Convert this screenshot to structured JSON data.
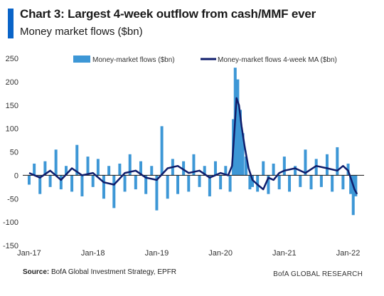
{
  "header": {
    "title": "Chart 3: Largest 4-week outflow from cash/MMF ever",
    "subtitle": "Money market flows ($bn)"
  },
  "footer": {
    "source_label": "Source:",
    "source_text": "BofA Global Investment Strategy, EPFR",
    "brand": "BofA GLOBAL RESEARCH"
  },
  "colors": {
    "bars": "#3d97d6",
    "ma_line": "#0f1d6b",
    "accent": "#0a64c8"
  },
  "chart_data": {
    "type": "bar",
    "ylim": [
      -150,
      250
    ],
    "yticks": [
      250,
      200,
      150,
      100,
      50,
      0,
      -50,
      -100,
      -150
    ],
    "xlim": [
      2016.9,
      2022.25
    ],
    "xticks": [
      {
        "label": "Jan-17",
        "t": 2017
      },
      {
        "label": "Jan-18",
        "t": 2018
      },
      {
        "label": "Jan-19",
        "t": 2019
      },
      {
        "label": "Jan-20",
        "t": 2020
      },
      {
        "label": "Jan-21",
        "t": 2021
      },
      {
        "label": "Jan-22",
        "t": 2022
      }
    ],
    "legend": {
      "placement": "top"
    },
    "series": [
      {
        "name": "Money-market flows ($bn)",
        "kind": "bar",
        "x": [
          2017.0,
          2017.08,
          2017.17,
          2017.25,
          2017.33,
          2017.42,
          2017.5,
          2017.58,
          2017.67,
          2017.75,
          2017.83,
          2017.92,
          2018.0,
          2018.08,
          2018.17,
          2018.25,
          2018.33,
          2018.42,
          2018.5,
          2018.58,
          2018.67,
          2018.75,
          2018.83,
          2018.92,
          2019.0,
          2019.08,
          2019.17,
          2019.25,
          2019.33,
          2019.42,
          2019.5,
          2019.58,
          2019.67,
          2019.75,
          2019.83,
          2019.92,
          2020.0,
          2020.08,
          2020.15,
          2020.2,
          2020.23,
          2020.27,
          2020.31,
          2020.35,
          2020.4,
          2020.46,
          2020.5,
          2020.58,
          2020.67,
          2020.75,
          2020.83,
          2020.92,
          2021.0,
          2021.08,
          2021.17,
          2021.25,
          2021.33,
          2021.42,
          2021.5,
          2021.58,
          2021.67,
          2021.75,
          2021.83,
          2021.92,
          2022.0,
          2022.04,
          2022.08,
          2022.12
        ],
        "values": [
          -20,
          25,
          -40,
          30,
          -25,
          55,
          -30,
          20,
          -35,
          65,
          -45,
          40,
          -25,
          35,
          -50,
          20,
          -70,
          25,
          -35,
          45,
          -30,
          30,
          -40,
          20,
          -75,
          105,
          -50,
          35,
          -40,
          30,
          -35,
          45,
          -25,
          20,
          -45,
          30,
          -30,
          20,
          -35,
          120,
          230,
          205,
          140,
          90,
          40,
          -30,
          -25,
          -35,
          30,
          -40,
          25,
          -30,
          40,
          -35,
          20,
          -25,
          55,
          -30,
          35,
          -25,
          45,
          -35,
          60,
          -30,
          25,
          -40,
          -85,
          -45
        ]
      },
      {
        "name": "Money-market flows 4-week MA ($bn)",
        "kind": "line",
        "x": [
          2017.0,
          2017.17,
          2017.33,
          2017.5,
          2017.67,
          2017.83,
          2018.0,
          2018.17,
          2018.33,
          2018.5,
          2018.67,
          2018.83,
          2019.0,
          2019.17,
          2019.33,
          2019.5,
          2019.67,
          2019.83,
          2020.0,
          2020.12,
          2020.18,
          2020.22,
          2020.25,
          2020.29,
          2020.33,
          2020.38,
          2020.44,
          2020.5,
          2020.58,
          2020.67,
          2020.75,
          2020.83,
          2020.92,
          2021.0,
          2021.17,
          2021.33,
          2021.5,
          2021.67,
          2021.83,
          2021.92,
          2022.0,
          2022.05,
          2022.1,
          2022.14
        ],
        "values": [
          5,
          -5,
          10,
          -10,
          15,
          0,
          5,
          -15,
          -20,
          5,
          10,
          -5,
          -10,
          15,
          20,
          5,
          10,
          -5,
          5,
          0,
          20,
          100,
          165,
          150,
          105,
          60,
          15,
          -10,
          -20,
          -30,
          -5,
          -10,
          5,
          10,
          15,
          5,
          20,
          15,
          10,
          20,
          10,
          -10,
          -30,
          -40
        ]
      }
    ]
  }
}
